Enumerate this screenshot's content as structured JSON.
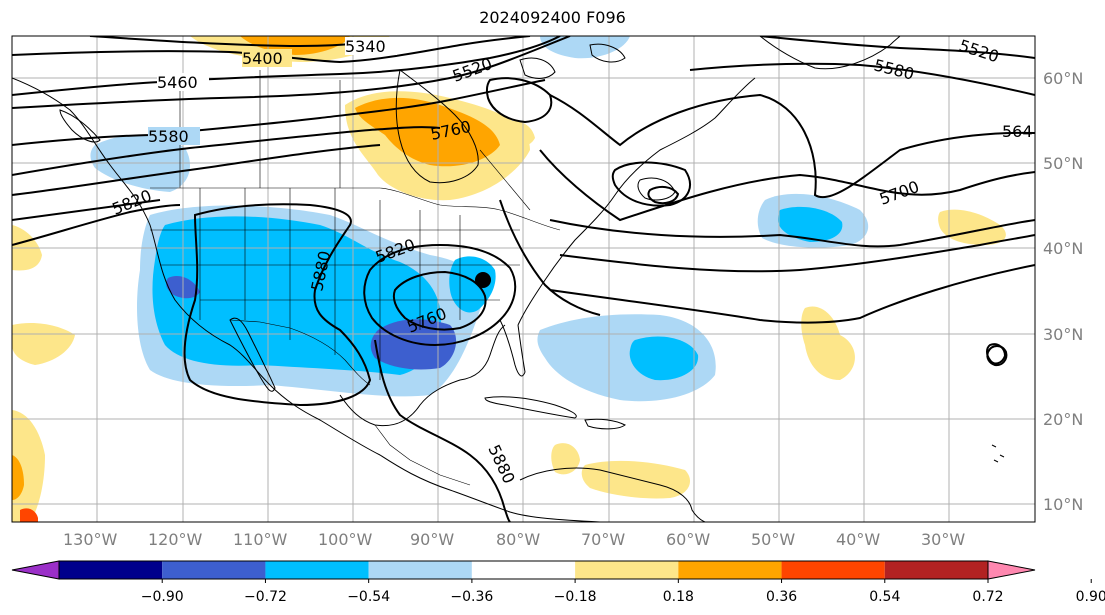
{
  "title": "2024092400 F096",
  "lat_labels": [
    "60°N",
    "50°N",
    "40°N",
    "30°N",
    "20°N",
    "10°N"
  ],
  "lon_labels": [
    "130°W",
    "120°W",
    "110°W",
    "100°W",
    "90°W",
    "80°W",
    "70°W",
    "60°W",
    "50°W",
    "40°W",
    "30°W"
  ],
  "contour_labels": [
    "5400",
    "5340",
    "5460",
    "5520",
    "5580",
    "5760",
    "5520",
    "5580",
    "564",
    "5700",
    "5820",
    "5820",
    "5880",
    "5760",
    "5880"
  ],
  "colorbar": {
    "tick_labels": [
      "−0.90",
      "−0.72",
      "−0.54",
      "−0.36",
      "−0.18",
      "0.18",
      "0.36",
      "0.54",
      "0.72",
      "0.90"
    ],
    "colors": [
      "#9b30c8",
      "#00008b",
      "#3d5fcf",
      "#00bfff",
      "#add8f5",
      "#ffffff",
      "#fde68a",
      "#ffa500",
      "#ff4500",
      "#b22222",
      "#ff88b0"
    ]
  },
  "shading_colors": {
    "neg_018": "#add8f5",
    "neg_036": "#00bfff",
    "neg_054": "#3d5fcf",
    "pos_018": "#fde68a",
    "pos_036": "#ffa500",
    "pos_054": "#ff4500"
  },
  "marker": "filled-circle"
}
